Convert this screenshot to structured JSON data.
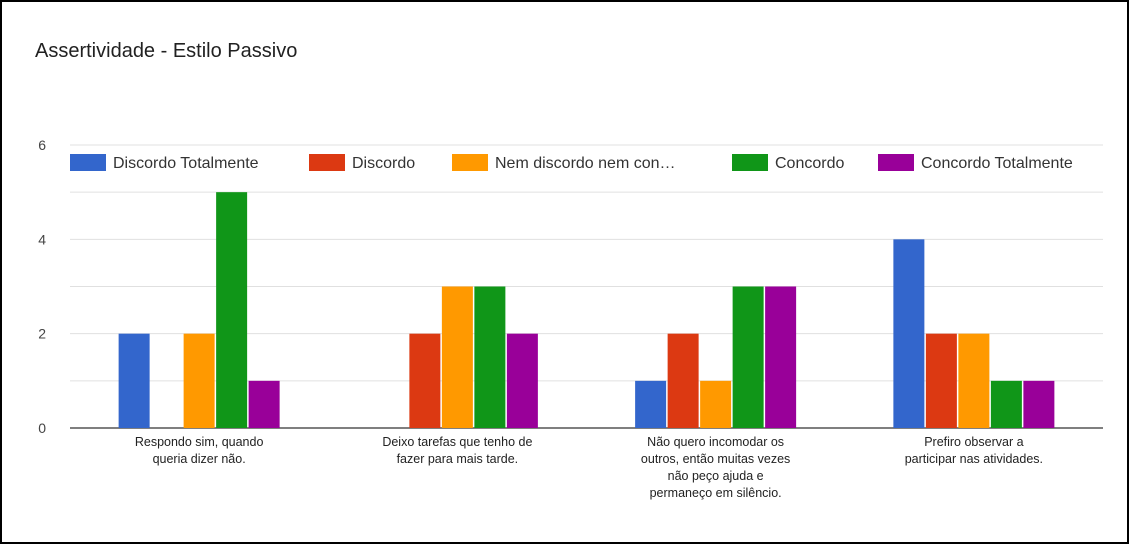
{
  "chart_data": {
    "type": "bar",
    "title": "Assertividade - Estilo Passivo",
    "categories": [
      [
        "Respondo sim, quando",
        "queria dizer não."
      ],
      [
        "Deixo tarefas que tenho de",
        "fazer para mais tarde."
      ],
      [
        "Não quero incomodar os",
        "outros, então muitas vezes",
        "não peço ajuda e",
        "permaneço em silêncio."
      ],
      [
        "Prefiro observar a",
        "participar nas atividades."
      ]
    ],
    "series": [
      {
        "name": "Discordo Totalmente",
        "color": "#3366cc",
        "values": [
          2,
          0,
          1,
          4
        ]
      },
      {
        "name": "Discordo",
        "color": "#dc3912",
        "values": [
          0,
          2,
          2,
          2
        ]
      },
      {
        "name": "Nem discordo nem con…",
        "color": "#ff9900",
        "values": [
          2,
          3,
          1,
          2
        ]
      },
      {
        "name": "Concordo",
        "color": "#109618",
        "values": [
          5,
          3,
          3,
          1
        ]
      },
      {
        "name": "Concordo Totalmente",
        "color": "#990099",
        "values": [
          1,
          2,
          3,
          1
        ]
      }
    ],
    "yticks": [
      0,
      2,
      4,
      6
    ],
    "ylim": [
      0,
      6
    ],
    "grid": true,
    "legend_position": "top"
  }
}
